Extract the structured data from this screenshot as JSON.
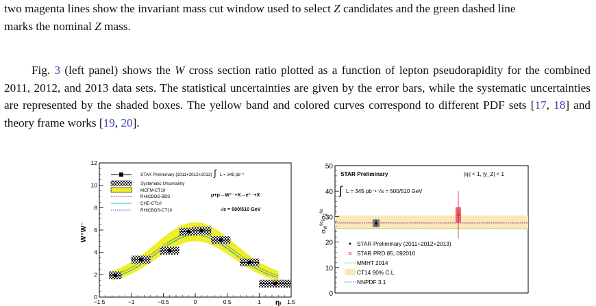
{
  "paragraph1": {
    "line1": "two magenta lines show the invariant mass cut window used to select ",
    "line1_Z": "Z",
    "line1_b": " candidates and the green dashed line",
    "line2": "marks the nominal ",
    "line2_Z": "Z",
    "line2_b": " mass."
  },
  "paragraph2": {
    "t1": "Fig. ",
    "ref_fig": "3",
    "t2": " (left panel) shows the ",
    "W": "W",
    "t3": " cross section ratio plotted as a function of lepton pseudorapidity for the combined 2011, 2012, and 2013 data sets. The statistical uncertainties are given by the error bars, while the systematic uncertainties are represented by the shaded boxes. The yellow band and colored curves correspond to different PDF sets [",
    "ref17": "17",
    "c1": ", ",
    "ref18": "18",
    "t4": "] and theory frame works [",
    "ref19": "19",
    "c2": ", ",
    "ref20": "20",
    "t5": "]."
  },
  "chart_data": [
    {
      "type": "scatter",
      "title": "",
      "ylabel": "W⁺W⁻",
      "xlabel": "ηₗ",
      "xlim": [
        -1.5,
        1.5
      ],
      "ylim": [
        0,
        12
      ],
      "xticks": [
        "-1.5",
        "-1",
        "-0.5",
        "0",
        "0.5",
        "1",
        "1.5"
      ],
      "yticks": [
        "0",
        "2",
        "4",
        "6",
        "8",
        "10",
        "12"
      ],
      "legend": [
        "STAR Preliminary (2011+2012+2013)",
        "L = 345 pb⁻¹",
        "Systematic Uncertainty",
        "MCFM-CT10",
        "RHICBOS-BBS",
        "CHE-CT10",
        "RHICBOS-CT10"
      ],
      "annotations": [
        "p+p→W⁺⁻+X→e⁺⁻+X",
        "√s = 500/510 GeV"
      ],
      "series": [
        {
          "name": "STAR Preliminary (2011+2012+2013)",
          "x": [
            -1.25,
            -0.85,
            -0.4,
            -0.1,
            0.1,
            0.4,
            0.85,
            1.25
          ],
          "y": [
            1.95,
            3.35,
            4.15,
            5.85,
            5.95,
            5.1,
            3.1,
            1.2
          ],
          "x_err": [
            0.1,
            0.15,
            0.15,
            0.15,
            0.15,
            0.15,
            0.15,
            0.25
          ]
        }
      ]
    },
    {
      "type": "scatter",
      "title": "STAR Preliminary",
      "cut_label": "|ηₗ| < 1, |y_Z| < 1",
      "lumi_label": "L = 345 pb⁻¹   √s = 500/510 GeV",
      "ylabel": "σW(fid)/σZ(fid)",
      "ylim": [
        0,
        50
      ],
      "yticks": [
        "0",
        "10",
        "20",
        "30",
        "40",
        "50"
      ],
      "legend": [
        "STAR Preliminary (2011+2012+2013)",
        "STAR PRD 85, 092010",
        "MMHT 2014",
        "CT14 90% C.L.",
        "NNPDF 3.1"
      ],
      "series": [
        {
          "name": "STAR Preliminary (2011+2012+2013)",
          "value": 27.4,
          "stat": 1.5,
          "sys": 1.5
        },
        {
          "name": "STAR PRD 85, 092010",
          "value": 30.7,
          "stat": 9.3,
          "sys": 3.0
        }
      ],
      "bands": {
        "CT14 90% C.L.": [
          25.0,
          30.5
        ],
        "MMHT 2014": 25.3,
        "NNPDF 3.1": 27.6
      }
    }
  ],
  "colors": {
    "ref": "#3a45b0",
    "yellow_band": "#f0ee2a",
    "ct14_band": "#fbe7b9",
    "red": "#cc2222",
    "green": "#55bb55",
    "cyan": "#22bbcc",
    "blue_dot": "#4455cc"
  }
}
